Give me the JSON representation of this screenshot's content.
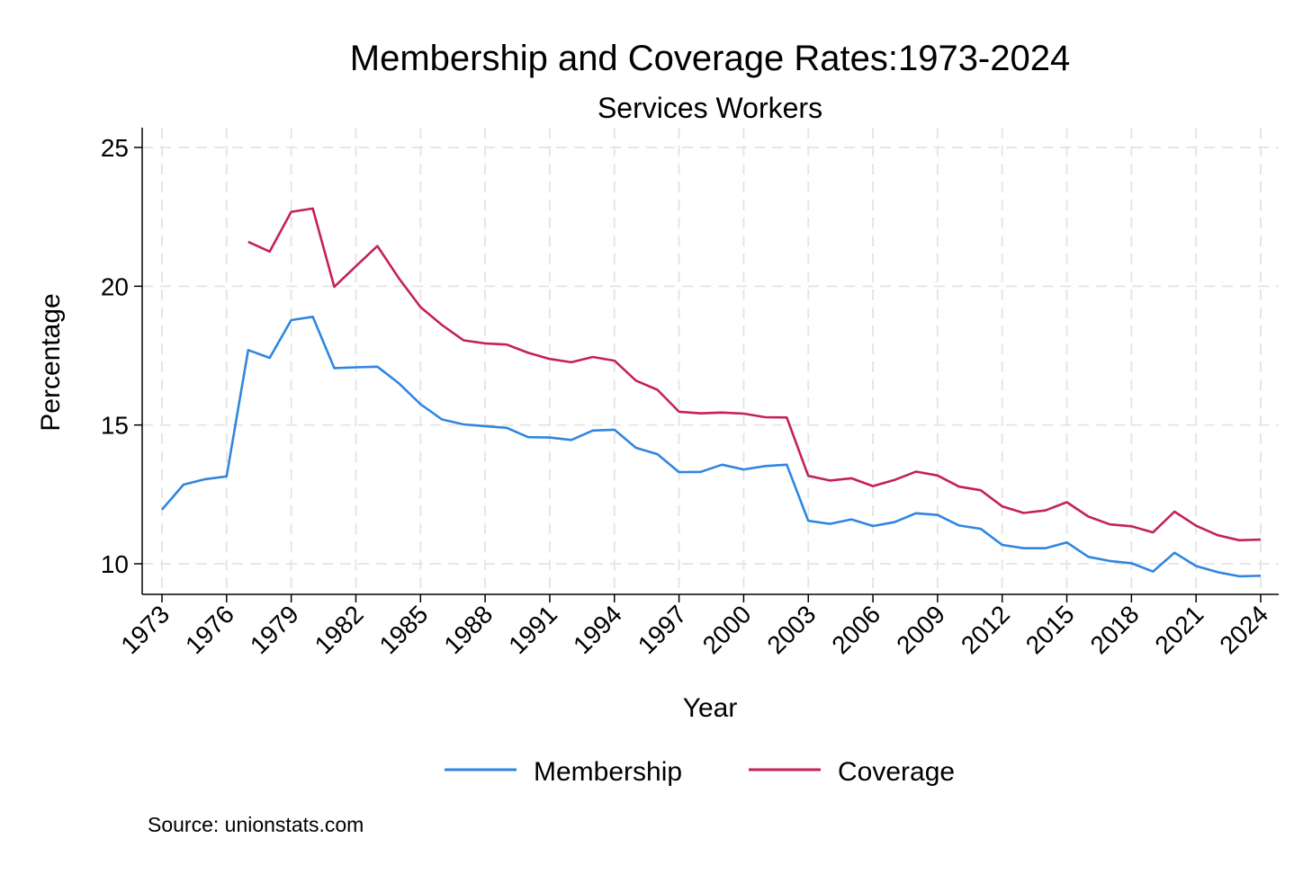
{
  "chart_data": {
    "type": "line",
    "title": "Membership and Coverage Rates:1973-2024",
    "subtitle": "Services Workers",
    "xlabel": "Year",
    "ylabel": "Percentage",
    "xlim": [
      1973,
      2024
    ],
    "ylim": [
      9,
      25.5
    ],
    "x_ticks": [
      1973,
      1976,
      1979,
      1982,
      1985,
      1988,
      1991,
      1994,
      1997,
      2000,
      2003,
      2006,
      2009,
      2012,
      2015,
      2018,
      2021,
      2024
    ],
    "y_ticks": [
      10,
      15,
      20,
      25
    ],
    "grid": true,
    "legend_position": "bottom",
    "note": "Source: unionstats.com",
    "series": [
      {
        "name": "Membership",
        "color": "#2f86e0",
        "x": [
          1973,
          1974,
          1975,
          1976,
          1977,
          1978,
          1979,
          1980,
          1981,
          1982,
          1983,
          1984,
          1985,
          1986,
          1987,
          1988,
          1989,
          1990,
          1991,
          1992,
          1993,
          1994,
          1995,
          1996,
          1997,
          1998,
          1999,
          2000,
          2001,
          2002,
          2003,
          2004,
          2005,
          2006,
          2007,
          2008,
          2009,
          2010,
          2011,
          2012,
          2013,
          2014,
          2015,
          2016,
          2017,
          2018,
          2019,
          2020,
          2021,
          2022,
          2023,
          2024
        ],
        "values": [
          11.95,
          12.85,
          13.05,
          13.15,
          17.7,
          17.42,
          18.78,
          18.9,
          17.05,
          17.08,
          17.1,
          16.5,
          15.75,
          15.2,
          15.02,
          14.96,
          14.9,
          14.56,
          14.55,
          14.46,
          14.8,
          14.83,
          14.18,
          13.95,
          13.3,
          13.31,
          13.57,
          13.4,
          13.52,
          13.57,
          11.55,
          11.44,
          11.6,
          11.36,
          11.5,
          11.82,
          11.76,
          11.38,
          11.26,
          10.68,
          10.56,
          10.56,
          10.77,
          10.25,
          10.1,
          10.02,
          9.72,
          10.4,
          9.92,
          9.7,
          9.55,
          9.57
        ]
      },
      {
        "name": "Coverage",
        "color": "#c4215a",
        "x": [
          1977,
          1978,
          1979,
          1980,
          1981,
          1982,
          1983,
          1984,
          1985,
          1986,
          1987,
          1988,
          1989,
          1990,
          1991,
          1992,
          1993,
          1994,
          1995,
          1996,
          1997,
          1998,
          1999,
          2000,
          2001,
          2002,
          2003,
          2004,
          2005,
          2006,
          2007,
          2008,
          2009,
          2010,
          2011,
          2012,
          2013,
          2014,
          2015,
          2016,
          2017,
          2018,
          2019,
          2020,
          2021,
          2022,
          2023,
          2024
        ],
        "values": [
          21.6,
          21.25,
          22.68,
          22.8,
          19.98,
          20.72,
          21.45,
          20.28,
          19.25,
          18.6,
          18.05,
          17.94,
          17.9,
          17.6,
          17.38,
          17.26,
          17.45,
          17.32,
          16.6,
          16.27,
          15.48,
          15.42,
          15.45,
          15.41,
          15.28,
          15.27,
          13.17,
          13.0,
          13.08,
          12.8,
          13.02,
          13.32,
          13.18,
          12.78,
          12.65,
          12.07,
          11.83,
          11.92,
          12.22,
          11.7,
          11.42,
          11.35,
          11.13,
          11.88,
          11.37,
          11.03,
          10.85,
          10.87
        ]
      }
    ]
  }
}
